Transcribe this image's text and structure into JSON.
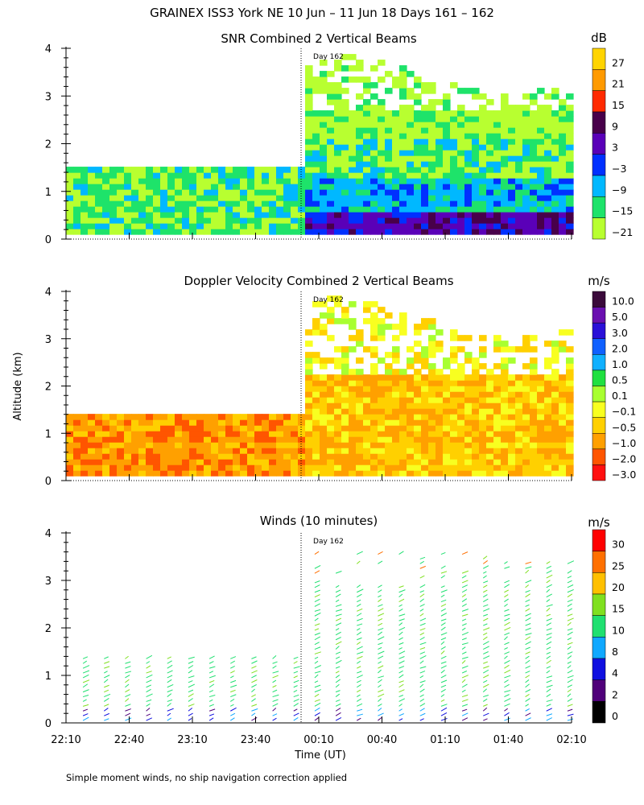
{
  "page": {
    "title": "GRAINEX ISS3 York NE  10 Jun – 11 Jun 18 Days 161 – 162",
    "y_axis_label": "Altitude (km)",
    "x_axis_label": "Time (UT)",
    "footnote": "Simple moment winds, no ship navigation correction applied",
    "day_marker": "Day 162"
  },
  "chart_data": [
    {
      "type": "heatmap",
      "title": "SNR Combined 2 Vertical Beams",
      "colorbar_unit": "dB",
      "colorbar_labels": [
        "27",
        "21",
        "15",
        "9",
        "3",
        "−3",
        "−9",
        "−15",
        "−21"
      ],
      "colorbar_colors": [
        "#ffd400",
        "#ff9a00",
        "#ff2a00",
        "#48004a",
        "#5a00b8",
        "#0030ff",
        "#00b8ff",
        "#1ee36a",
        "#b8ff30"
      ],
      "y_ticks": [
        "0",
        "1",
        "2",
        "3",
        "4"
      ],
      "ylim": [
        0,
        4
      ],
      "x_ticks": [
        "22:10",
        "22:40",
        "23:10",
        "23:40",
        "00:10",
        "00:40",
        "01:10",
        "01:40",
        "02:10"
      ],
      "grid": false
    },
    {
      "type": "heatmap",
      "title": "Doppler Velocity Combined 2 Vertical Beams",
      "colorbar_unit": "m/s",
      "colorbar_labels": [
        "10.0",
        "5.0",
        "3.0",
        "2.0",
        "1.0",
        "0.5",
        "0.1",
        "−0.1",
        "−0.5",
        "−1.0",
        "−2.0",
        "−3.0"
      ],
      "colorbar_colors": [
        "#3a0a3a",
        "#6a10b0",
        "#2a10d8",
        "#1060ff",
        "#10b0ff",
        "#20e040",
        "#a8ff30",
        "#f8ff20",
        "#ffd000",
        "#ffa000",
        "#ff5500",
        "#ff1010"
      ],
      "y_ticks": [
        "0",
        "1",
        "2",
        "3",
        "4"
      ],
      "ylim": [
        0,
        4
      ],
      "x_ticks": [
        "22:10",
        "22:40",
        "23:10",
        "23:40",
        "00:10",
        "00:40",
        "01:10",
        "01:40",
        "02:10"
      ],
      "grid": false
    },
    {
      "type": "scatter",
      "title": "Winds (10 minutes)",
      "colorbar_unit": "m/s",
      "colorbar_labels": [
        "30",
        "25",
        "20",
        "15",
        "10",
        "8",
        "4",
        "2",
        "0"
      ],
      "colorbar_colors": [
        "#ff0000",
        "#ff7000",
        "#ffc000",
        "#80e020",
        "#20e070",
        "#10a8ff",
        "#1010e0",
        "#50007a",
        "#000000"
      ],
      "y_ticks": [
        "0",
        "1",
        "2",
        "3",
        "4"
      ],
      "ylim": [
        0,
        4
      ],
      "x_ticks": [
        "22:10",
        "22:40",
        "23:10",
        "23:40",
        "00:10",
        "00:40",
        "01:10",
        "01:40",
        "02:10"
      ],
      "grid": false
    }
  ]
}
